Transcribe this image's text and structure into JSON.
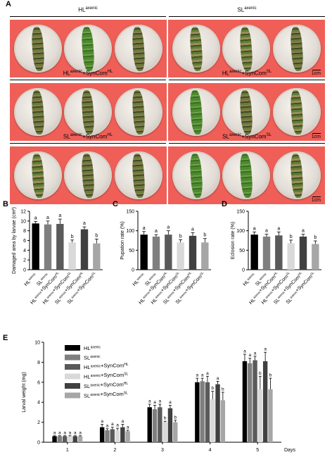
{
  "panel_letters": {
    "A": "A",
    "B": "B",
    "C": "C",
    "D": "D",
    "E": "E"
  },
  "panel_a": {
    "conditions": [
      {
        "label": "HL-axenic"
      },
      {
        "label": "SL-axenic"
      },
      {
        "label": "HL-axenic+SynCom-HL"
      },
      {
        "label": "HL-axenic+SynCom-SL"
      },
      {
        "label": "SL-axenic+SynCom-HL"
      },
      {
        "label": "SL-axenic+SynCom-SL"
      }
    ],
    "scale_label": "1cm"
  },
  "groups": [
    "HL-axenic",
    "SL-axenic",
    "HL-axenic+SynCom-HL",
    "HL-axenic+SynCom-SL",
    "SL-axenic+SynCom-HL",
    "SL-axenic+SynCom-SL"
  ],
  "colors": {
    "bars": [
      "#000000",
      "#7f7f7f",
      "#5a5a5a",
      "#d9d9d9",
      "#404040",
      "#a6a6a6"
    ],
    "photo_background": "#ef5f58"
  },
  "chart_data": [
    {
      "panel": "B",
      "type": "bar",
      "ylabel": "Damaged area by larvae (cm²)",
      "ylim": [
        0,
        12
      ],
      "yticks": [
        0,
        2,
        4,
        6,
        8,
        10,
        12
      ],
      "values": [
        9.5,
        9.3,
        9.4,
        5.6,
        8.3,
        5.4
      ],
      "errors": [
        0.4,
        0.7,
        1.0,
        0.5,
        0.5,
        0.9
      ],
      "letters": [
        "a",
        "a",
        "a",
        "b",
        "a",
        "b"
      ]
    },
    {
      "panel": "C",
      "type": "bar",
      "ylabel": "Pupation rate (%)",
      "ylim": [
        0,
        150
      ],
      "yticks": [
        0,
        50,
        100,
        150
      ],
      "values": [
        90,
        85,
        90,
        70,
        87,
        70
      ],
      "errors": [
        8,
        5,
        10,
        7,
        8,
        10
      ],
      "letters": [
        "a",
        "a",
        "a",
        "b",
        "a",
        "b"
      ]
    },
    {
      "panel": "D",
      "type": "bar",
      "ylabel": "Eclosion rate (%)",
      "ylim": [
        0,
        150
      ],
      "yticks": [
        0,
        50,
        100,
        150
      ],
      "values": [
        90,
        85,
        88,
        68,
        85,
        66
      ],
      "errors": [
        7,
        6,
        9,
        8,
        6,
        8
      ],
      "letters": [
        "a",
        "a",
        "a",
        "b",
        "a",
        "b"
      ]
    },
    {
      "panel": "E",
      "type": "bar",
      "ylabel": "Larval weight (mg)",
      "xlabel": "Days",
      "ylim": [
        0,
        10
      ],
      "yticks": [
        0,
        2,
        4,
        6,
        8,
        10
      ],
      "categories": [
        "1",
        "2",
        "3",
        "4",
        "5"
      ],
      "legend_placement": "top-left",
      "series": [
        {
          "name": "HL-axenic",
          "values": [
            0.6,
            1.5,
            3.5,
            6.0,
            8.1
          ],
          "errors": [
            0.05,
            0.3,
            0.3,
            0.4,
            0.7
          ],
          "letters": [
            "a",
            "a",
            "a",
            "a",
            "a"
          ]
        },
        {
          "name": "SL-axenic",
          "values": [
            0.6,
            1.2,
            3.3,
            6.1,
            7.9
          ],
          "errors": [
            0.05,
            0.15,
            0.4,
            0.3,
            0.5
          ],
          "letters": [
            "a",
            "a",
            "a",
            "a",
            "a"
          ]
        },
        {
          "name": "HL-axenic+SynCom-HL",
          "values": [
            0.6,
            1.3,
            3.5,
            6.0,
            8.2
          ],
          "errors": [
            0.05,
            0.2,
            0.3,
            0.6,
            0.4
          ],
          "letters": [
            "a",
            "a",
            "a",
            "a",
            "a"
          ]
        },
        {
          "name": "HL-axenic+SynCom-SL",
          "values": [
            0.6,
            1.2,
            2.0,
            4.3,
            5.3
          ],
          "errors": [
            0.05,
            0.2,
            0.1,
            0.8,
            1.3
          ],
          "letters": [
            "a",
            "a",
            "b",
            "b",
            "b"
          ]
        },
        {
          "name": "SL-axenic+SynCom-HL",
          "values": [
            0.6,
            1.5,
            3.4,
            5.8,
            8.1
          ],
          "errors": [
            0.05,
            0.3,
            0.3,
            0.3,
            0.9
          ],
          "letters": [
            "a",
            "a",
            "a",
            "a",
            "a"
          ]
        },
        {
          "name": "SL-axenic+SynCom-SL",
          "values": [
            0.6,
            1.1,
            2.0,
            4.2,
            5.3
          ],
          "errors": [
            0.05,
            0.1,
            0.2,
            0.8,
            1.1
          ],
          "letters": [
            "a",
            "a",
            "b",
            "b",
            "b"
          ]
        }
      ]
    }
  ]
}
